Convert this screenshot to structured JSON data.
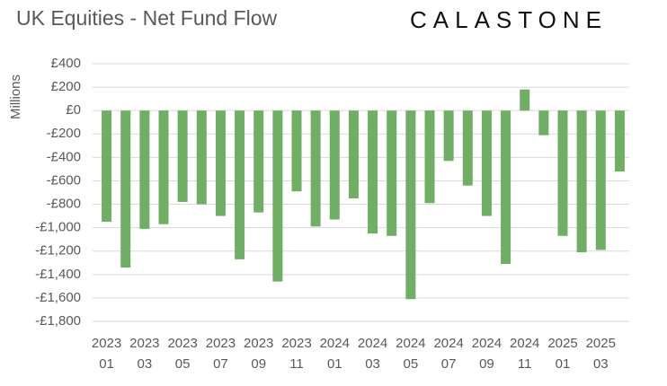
{
  "chart_data": {
    "type": "bar",
    "title": "UK Equities - Net Fund Flow",
    "logo": "CALASTONE",
    "y_label": "Millions",
    "categories": [
      "2023\n01",
      null,
      "2023\n03",
      null,
      "2023\n05",
      null,
      "2023\n07",
      null,
      "2023\n09",
      null,
      "2023\n11",
      null,
      "2024\n01",
      null,
      "2024\n03",
      null,
      "2024\n05",
      null,
      "2024\n07",
      null,
      "2024\n09",
      null,
      "2024\n11",
      null,
      "2025\n01",
      null,
      "2025\n03",
      null
    ],
    "values": [
      -950,
      -1340,
      -1010,
      -970,
      -780,
      -800,
      -900,
      -1270,
      -870,
      -1460,
      -690,
      -990,
      -930,
      -750,
      -1050,
      -1070,
      -1610,
      -790,
      -430,
      -640,
      -900,
      -1310,
      180,
      -210,
      -1070,
      -1210,
      -1190,
      -520
    ],
    "color": "#70ad65",
    "ylim": [
      -1800,
      400
    ],
    "yticks": [
      {
        "value": -1800,
        "label": "-£1,800"
      },
      {
        "value": -1600,
        "label": "-£1,600"
      },
      {
        "value": -1400,
        "label": "-£1,400"
      },
      {
        "value": -1200,
        "label": "-£1,200"
      },
      {
        "value": -1000,
        "label": "-£1,000"
      },
      {
        "value": -800,
        "label": "-£800"
      },
      {
        "value": -600,
        "label": "-£600"
      },
      {
        "value": -400,
        "label": "-£400"
      },
      {
        "value": -200,
        "label": "-£200"
      },
      {
        "value": 0,
        "label": "£0"
      },
      {
        "value": 200,
        "label": "£200"
      },
      {
        "value": 400,
        "label": "£400"
      }
    ],
    "grid": true
  }
}
